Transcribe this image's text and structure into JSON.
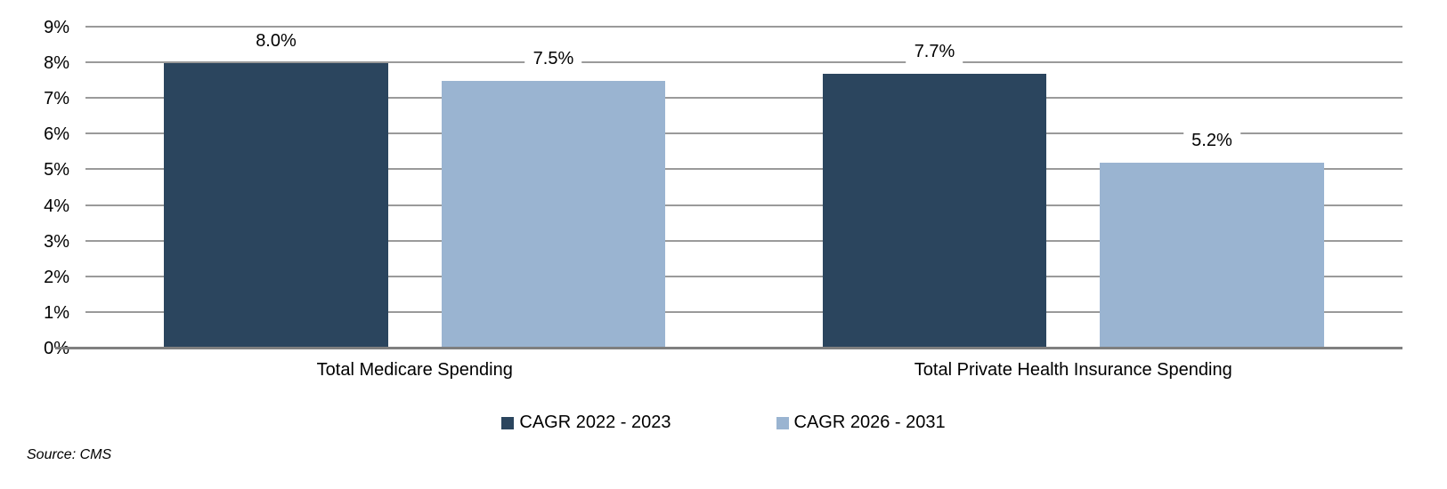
{
  "chart_data": {
    "type": "bar",
    "title": "",
    "categories": [
      "Total Medicare Spending",
      "Total Private Health Insurance Spending"
    ],
    "series": [
      {
        "name": "CAGR 2022 - 2023",
        "color": "#2B455E",
        "values": [
          8.0,
          7.7
        ],
        "value_labels": [
          "8.0%",
          "7.7%"
        ]
      },
      {
        "name": "CAGR 2026 - 2031",
        "color": "#9AB4D1",
        "values": [
          7.5,
          5.2
        ],
        "value_labels": [
          "7.5%",
          "5.2%"
        ]
      }
    ],
    "ylim": [
      0,
      9
    ],
    "ytick_step": 1,
    "yticks": [
      "0%",
      "1%",
      "2%",
      "3%",
      "4%",
      "5%",
      "6%",
      "7%",
      "8%",
      "9%"
    ],
    "xlabel": "",
    "ylabel": "",
    "grid": "horizontal",
    "legend_position": "bottom"
  },
  "legend": {
    "items": [
      {
        "label": "CAGR 2022 - 2023",
        "color": "#2B455E"
      },
      {
        "label": "CAGR 2026 - 2031",
        "color": "#9AB4D1"
      }
    ]
  },
  "footer": {
    "source": "Source: CMS"
  },
  "colors": {
    "background": "#FFFFFF",
    "gridline": "#9A9A9A",
    "axis_line": "#7F7F7F",
    "text": "#000000",
    "series_dark": "#2B455E",
    "series_light": "#9AB4D1"
  }
}
